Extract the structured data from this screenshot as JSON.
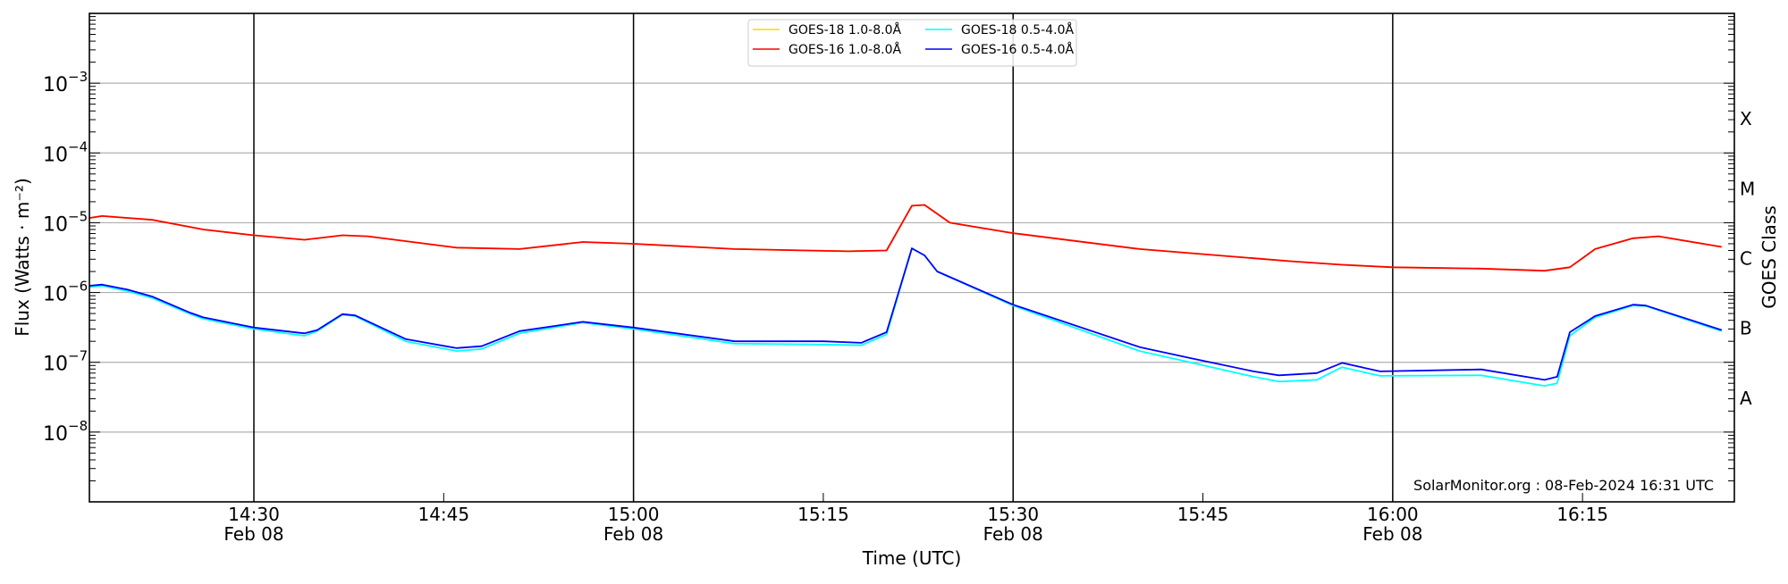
{
  "chart_data": {
    "type": "line",
    "xlabel": "Time (UTC)",
    "ylabel": "Flux (Watts · m⁻²)",
    "ylabel_right": "GOES Class",
    "yscale": "log",
    "ylim": [
      1e-09,
      0.01
    ],
    "xlim": [
      "14:17",
      "16:27"
    ],
    "grid": "horizontal at decades",
    "legend_position": "top-center",
    "ytick_labels": [
      {
        "exp": -8,
        "base": "10",
        "sup": "−8"
      },
      {
        "exp": -7,
        "base": "10",
        "sup": "−7"
      },
      {
        "exp": -6,
        "base": "10",
        "sup": "−6"
      },
      {
        "exp": -5,
        "base": "10",
        "sup": "−5"
      },
      {
        "exp": -4,
        "base": "10",
        "sup": "−4"
      },
      {
        "exp": -3,
        "base": "10",
        "sup": "−3"
      }
    ],
    "xtick_labels": [
      {
        "time": "14:30",
        "label": "14:30",
        "date": "Feb 08"
      },
      {
        "time": "14:45",
        "label": "14:45",
        "date": ""
      },
      {
        "time": "15:00",
        "label": "15:00",
        "date": "Feb 08"
      },
      {
        "time": "15:15",
        "label": "15:15",
        "date": ""
      },
      {
        "time": "15:30",
        "label": "15:30",
        "date": "Feb 08"
      },
      {
        "time": "15:45",
        "label": "15:45",
        "date": ""
      },
      {
        "time": "16:00",
        "label": "16:00",
        "date": "Feb 08"
      },
      {
        "time": "16:15",
        "label": "16:15",
        "date": ""
      }
    ],
    "vertical_lines": [
      "14:30",
      "15:00",
      "15:30",
      "16:00"
    ],
    "class_labels": [
      {
        "label": "X",
        "flux": 0.000316
      },
      {
        "label": "M",
        "flux": 3.16e-05
      },
      {
        "label": "C",
        "flux": 3.16e-06
      },
      {
        "label": "B",
        "flux": 3.16e-07
      },
      {
        "label": "A",
        "flux": 3.16e-08
      }
    ],
    "annotation": "SolarMonitor.org : 08-Feb-2024 16:31 UTC",
    "series": [
      {
        "name": "GOES-18 1.0-8.0Å",
        "color": "#ffd700",
        "t": [
          "14:17",
          "14:18",
          "14:22",
          "14:26",
          "14:30",
          "14:34",
          "14:37",
          "14:39",
          "14:46",
          "14:51",
          "14:56",
          "15:00",
          "15:08",
          "15:17",
          "15:20",
          "15:22",
          "15:23",
          "15:25",
          "15:30",
          "15:40",
          "15:49",
          "15:52",
          "15:56",
          "16:00",
          "16:07",
          "16:12",
          "16:14",
          "16:16",
          "16:19",
          "16:21",
          "16:26"
        ],
        "values": [
          1.17e-05,
          1.25e-05,
          1.1e-05,
          8e-06,
          6.6e-06,
          5.7e-06,
          6.6e-06,
          6.4e-06,
          4.4e-06,
          4.2e-06,
          5.3e-06,
          5e-06,
          4.2e-06,
          3.9e-06,
          4e-06,
          1.75e-05,
          1.8e-05,
          1e-05,
          7.1e-06,
          4.2e-06,
          3.1e-06,
          2.8e-06,
          2.5e-06,
          2.3e-06,
          2.2e-06,
          2.05e-06,
          2.3e-06,
          4.2e-06,
          6e-06,
          6.4e-06,
          4.5e-06
        ]
      },
      {
        "name": "GOES-16 1.0-8.0Å",
        "color": "#ff0000",
        "t": [
          "14:17",
          "14:18",
          "14:22",
          "14:26",
          "14:30",
          "14:34",
          "14:37",
          "14:39",
          "14:46",
          "14:51",
          "14:56",
          "15:00",
          "15:08",
          "15:17",
          "15:20",
          "15:22",
          "15:23",
          "15:25",
          "15:30",
          "15:40",
          "15:49",
          "15:52",
          "15:56",
          "16:00",
          "16:07",
          "16:12",
          "16:14",
          "16:16",
          "16:19",
          "16:21",
          "16:26"
        ],
        "values": [
          1.17e-05,
          1.25e-05,
          1.1e-05,
          8e-06,
          6.6e-06,
          5.7e-06,
          6.6e-06,
          6.4e-06,
          4.4e-06,
          4.2e-06,
          5.3e-06,
          5e-06,
          4.2e-06,
          3.9e-06,
          4e-06,
          1.75e-05,
          1.8e-05,
          1e-05,
          7.1e-06,
          4.2e-06,
          3.1e-06,
          2.8e-06,
          2.5e-06,
          2.3e-06,
          2.2e-06,
          2.05e-06,
          2.3e-06,
          4.2e-06,
          6e-06,
          6.4e-06,
          4.5e-06
        ]
      },
      {
        "name": "GOES-18 0.5-4.0Å",
        "color": "#00ffff",
        "t": [
          "14:17",
          "14:18",
          "14:20",
          "14:22",
          "14:25",
          "14:26",
          "14:30",
          "14:34",
          "14:35",
          "14:37",
          "14:38",
          "14:42",
          "14:46",
          "14:48",
          "14:51",
          "14:56",
          "15:00",
          "15:08",
          "15:15",
          "15:18",
          "15:20",
          "15:22",
          "15:23",
          "15:24",
          "15:30",
          "15:40",
          "15:44",
          "15:49",
          "15:51",
          "15:54",
          "15:56",
          "15:59",
          "16:07",
          "16:12",
          "16:13",
          "16:14",
          "16:16",
          "16:19",
          "16:20",
          "16:26"
        ],
        "values": [
          1.2e-06,
          1.25e-06,
          1.05e-06,
          8.3e-07,
          4.9e-07,
          4.2e-07,
          3e-07,
          2.4e-07,
          2.8e-07,
          4.8e-07,
          4.6e-07,
          2e-07,
          1.45e-07,
          1.55e-07,
          2.6e-07,
          3.7e-07,
          3e-07,
          1.85e-07,
          1.8e-07,
          1.75e-07,
          2.5e-07,
          4.3e-06,
          3.4e-06,
          2e-06,
          6.5e-07,
          1.45e-07,
          1e-07,
          6.2e-08,
          5.3e-08,
          5.6e-08,
          8.5e-08,
          6.4e-08,
          6.5e-08,
          4.6e-08,
          5e-08,
          2.4e-07,
          4.4e-07,
          6.5e-07,
          6.4e-07,
          2.8e-07
        ]
      },
      {
        "name": "GOES-16 0.5-4.0Å",
        "color": "#0000ff",
        "t": [
          "14:17",
          "14:18",
          "14:20",
          "14:22",
          "14:25",
          "14:26",
          "14:30",
          "14:34",
          "14:35",
          "14:37",
          "14:38",
          "14:42",
          "14:46",
          "14:48",
          "14:51",
          "14:56",
          "15:00",
          "15:08",
          "15:15",
          "15:18",
          "15:20",
          "15:22",
          "15:23",
          "15:24",
          "15:30",
          "15:40",
          "15:44",
          "15:49",
          "15:51",
          "15:54",
          "15:56",
          "15:59",
          "16:07",
          "16:12",
          "16:13",
          "16:14",
          "16:16",
          "16:19",
          "16:20",
          "16:26"
        ],
        "values": [
          1.25e-06,
          1.3e-06,
          1.1e-06,
          8.7e-07,
          5.1e-07,
          4.4e-07,
          3.15e-07,
          2.6e-07,
          2.9e-07,
          4.9e-07,
          4.7e-07,
          2.15e-07,
          1.6e-07,
          1.7e-07,
          2.8e-07,
          3.8e-07,
          3.15e-07,
          2e-07,
          2e-07,
          1.9e-07,
          2.7e-07,
          4.3e-06,
          3.4e-06,
          2e-06,
          6.7e-07,
          1.65e-07,
          1.15e-07,
          7.4e-08,
          6.5e-08,
          7e-08,
          9.8e-08,
          7.4e-08,
          7.9e-08,
          5.6e-08,
          6.2e-08,
          2.7e-07,
          4.6e-07,
          6.7e-07,
          6.5e-07,
          2.9e-07
        ]
      }
    ]
  }
}
